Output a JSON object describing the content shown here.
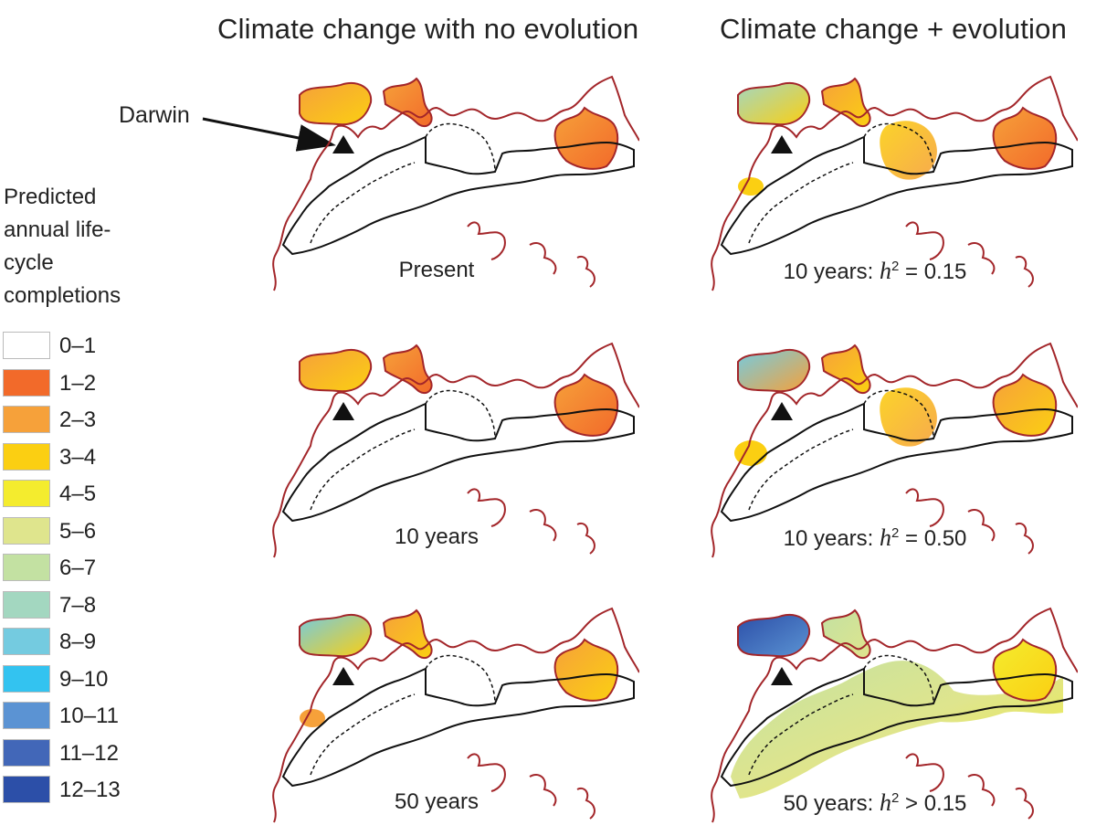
{
  "titles": {
    "left": "Climate change with no evolution",
    "right": "Climate change + evolution"
  },
  "darwin_label": "Darwin",
  "legend": {
    "title_lines": [
      "Predicted",
      "annual life-",
      "cycle",
      "completions"
    ],
    "items": [
      {
        "label": "0–1",
        "color": "#ffffff"
      },
      {
        "label": "1–2",
        "color": "#f26a2a"
      },
      {
        "label": "2–3",
        "color": "#f6a13a"
      },
      {
        "label": "3–4",
        "color": "#fbcf12"
      },
      {
        "label": "4–5",
        "color": "#f4ec2e"
      },
      {
        "label": "5–6",
        "color": "#dfe58d"
      },
      {
        "label": "6–7",
        "color": "#c3e1a2"
      },
      {
        "label": "7–8",
        "color": "#a3d7c0"
      },
      {
        "label": "8–9",
        "color": "#74cbe0"
      },
      {
        "label": "9–10",
        "color": "#33c3f0"
      },
      {
        "label": "10–11",
        "color": "#5b93d3"
      },
      {
        "label": "11–12",
        "color": "#4267b8"
      },
      {
        "label": "12–13",
        "color": "#2c4fa8"
      }
    ]
  },
  "maps": [
    {
      "id": "present",
      "column": "no-evolution",
      "caption": "Present",
      "fill": {
        "nw": [
          "#f6a13a",
          "#fbcf12"
        ],
        "top": [
          "#f6a13a",
          "#f26a2a"
        ],
        "east": [
          "#f6a13a",
          "#f26a2a"
        ],
        "inland": []
      }
    },
    {
      "id": "no-evo-10",
      "column": "no-evolution",
      "caption": "10 years",
      "fill": {
        "nw": [
          "#f6a13a",
          "#fbcf12"
        ],
        "top": [
          "#f6a13a",
          "#f26a2a"
        ],
        "east": [
          "#f6a13a",
          "#f26a2a"
        ],
        "inland": []
      }
    },
    {
      "id": "no-evo-50",
      "column": "no-evolution",
      "caption": "50 years",
      "fill": {
        "nw": [
          "#74cbe0",
          "#fbcf12"
        ],
        "top": [
          "#f6a13a",
          "#fbcf12"
        ],
        "east": [
          "#f6a13a",
          "#fbcf12"
        ],
        "inland": [
          "#f6a13a"
        ]
      }
    },
    {
      "id": "evo-10-015",
      "column": "evolution",
      "caption_prefix": "10 years: ",
      "h2_symbol": "h",
      "h2_sup": "2",
      "caption_suffix": " = 0.15",
      "fill": {
        "nw": [
          "#a3d7c0",
          "#fbcf12"
        ],
        "top": [
          "#f6a13a",
          "#fbcf12"
        ],
        "east": [
          "#f6a13a",
          "#f26a2a"
        ],
        "inland": [
          "#fbcf12",
          "#f6a13a"
        ]
      }
    },
    {
      "id": "evo-10-050",
      "column": "evolution",
      "caption_prefix": "10 years: ",
      "h2_symbol": "h",
      "h2_sup": "2",
      "caption_suffix": " = 0.50",
      "fill": {
        "nw": [
          "#74cbe0",
          "#f6a13a"
        ],
        "top": [
          "#f6a13a",
          "#fbcf12"
        ],
        "east": [
          "#f6a13a",
          "#fbcf12"
        ],
        "inland": [
          "#fbcf12",
          "#f6a13a"
        ]
      }
    },
    {
      "id": "evo-50",
      "column": "evolution",
      "caption_prefix": "50 years: ",
      "h2_symbol": "h",
      "h2_sup": "2",
      "caption_suffix": " > 0.15",
      "fill": {
        "nw": [
          "#2c4fa8",
          "#5b93d3"
        ],
        "top": [
          "#c3e1a2",
          "#dfe58d"
        ],
        "east": [
          "#f4ec2e",
          "#fbcf12"
        ],
        "inland": [
          "#c3e1a2",
          "#dfe58d",
          "#f4ec2e"
        ]
      }
    }
  ],
  "colors": {
    "coastline": "#a3262a",
    "boundary": "#111111",
    "marker": "#111111"
  }
}
